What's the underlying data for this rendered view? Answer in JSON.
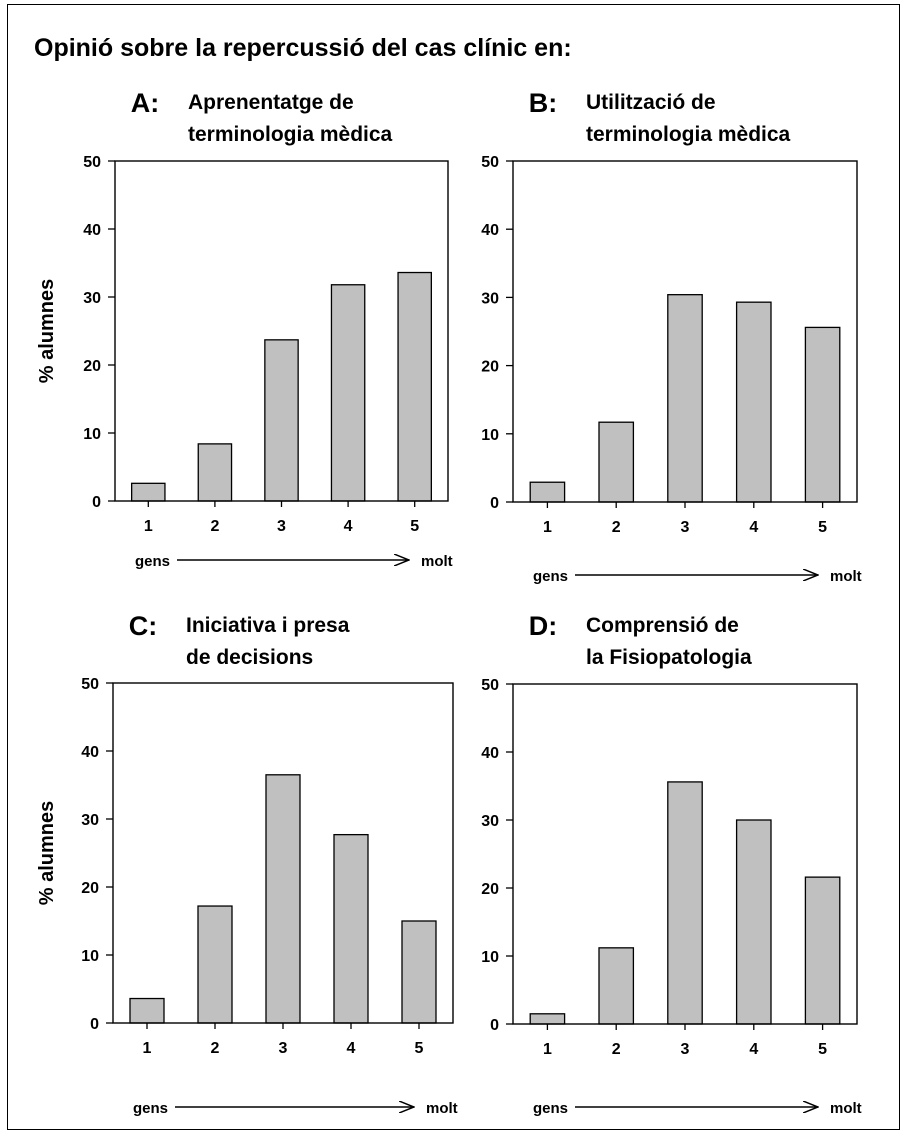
{
  "title": "Opinió sobre la repercussió del cas clínic en:",
  "colors": {
    "bar": "#c0c0c0",
    "stroke": "#000000"
  },
  "chart_data": [
    {
      "type": "bar",
      "letter": "A:",
      "title_lines": [
        "Aprenentatge de",
        "terminologia mèdica"
      ],
      "categories": [
        "1",
        "2",
        "3",
        "4",
        "5"
      ],
      "values": [
        2.6,
        8.4,
        23.7,
        31.8,
        33.6
      ],
      "ylabel": "% alumnes",
      "ylim": [
        0,
        50
      ],
      "yticks": [
        "0",
        "10",
        "20",
        "30",
        "40",
        "50"
      ],
      "scale_low": "gens",
      "scale_high": "molt",
      "grid": false,
      "legend": "none"
    },
    {
      "type": "bar",
      "letter": "B:",
      "title_lines": [
        "Utilització de",
        "terminologia mèdica"
      ],
      "categories": [
        "1",
        "2",
        "3",
        "4",
        "5"
      ],
      "values": [
        2.9,
        11.7,
        30.4,
        29.3,
        25.6
      ],
      "ylabel": "",
      "ylim": [
        0,
        50
      ],
      "yticks": [
        "0",
        "10",
        "20",
        "30",
        "40",
        "50"
      ],
      "scale_low": "gens",
      "scale_high": "molt",
      "grid": false,
      "legend": "none"
    },
    {
      "type": "bar",
      "letter": "C:",
      "title_lines": [
        "Iniciativa i presa",
        "de decisions"
      ],
      "categories": [
        "1",
        "2",
        "3",
        "4",
        "5"
      ],
      "values": [
        3.6,
        17.2,
        36.5,
        27.7,
        15.0
      ],
      "ylabel": "% alumnes",
      "ylim": [
        0,
        50
      ],
      "yticks": [
        "0",
        "10",
        "20",
        "30",
        "40",
        "50"
      ],
      "scale_low": "gens",
      "scale_high": "molt",
      "grid": false,
      "legend": "none"
    },
    {
      "type": "bar",
      "letter": "D:",
      "title_lines": [
        "Comprensió de",
        "la Fisiopatologia"
      ],
      "categories": [
        "1",
        "2",
        "3",
        "4",
        "5"
      ],
      "values": [
        1.5,
        11.2,
        35.6,
        30.0,
        21.6
      ],
      "ylabel": "",
      "ylim": [
        0,
        50
      ],
      "yticks": [
        "0",
        "10",
        "20",
        "30",
        "40",
        "50"
      ],
      "scale_low": "gens",
      "scale_high": "molt",
      "grid": false,
      "legend": "none"
    }
  ]
}
